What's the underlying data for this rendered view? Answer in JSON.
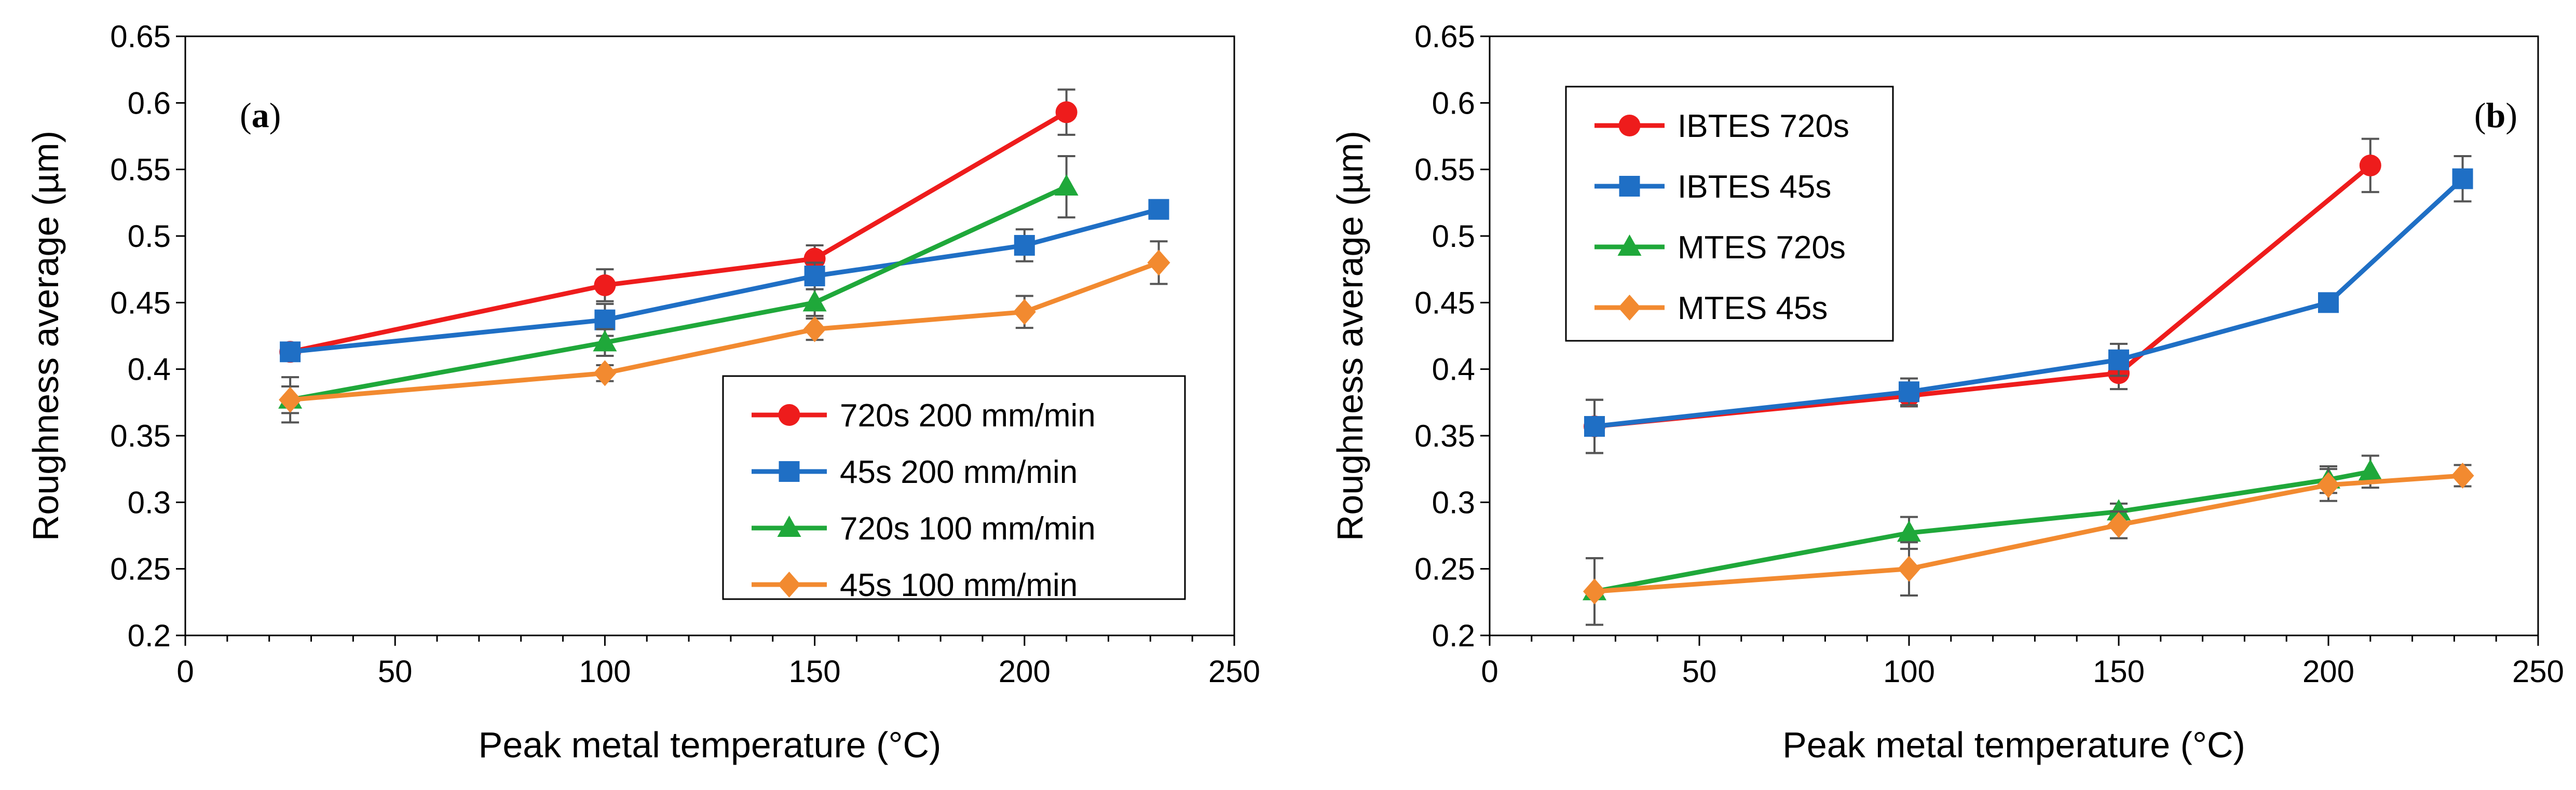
{
  "chart_data": [
    {
      "type": "line",
      "panel_label": "(a)",
      "panel_letter": "a",
      "xlabel": "Peak metal temperature (°C)",
      "ylabel": "Roughness average (µm)",
      "xlim": [
        0,
        250
      ],
      "ylim": [
        0.2,
        0.65
      ],
      "xticks": [
        "0",
        "50",
        "100",
        "150",
        "200",
        "250"
      ],
      "yticks": [
        "0.2",
        "0.25",
        "0.3",
        "0.35",
        "0.4",
        "0.45",
        "0.5",
        "0.55",
        "0.6",
        "0.65"
      ],
      "grid": false,
      "legend_position": "bottom-right",
      "series": [
        {
          "name": "720s 200 mm/min",
          "color": "#ee1c1c",
          "marker": "circle",
          "x": [
            25,
            100,
            150,
            210
          ],
          "y": [
            0.413,
            0.463,
            0.483,
            0.593
          ],
          "err": [
            0.005,
            0.012,
            0.01,
            0.017
          ]
        },
        {
          "name": "45s 200 mm/min",
          "color": "#1f6fc5",
          "marker": "square",
          "x": [
            25,
            100,
            150,
            200,
            232
          ],
          "y": [
            0.413,
            0.437,
            0.47,
            0.493,
            0.52
          ],
          "err": [
            0.006,
            0.012,
            0.01,
            0.012,
            0.006
          ]
        },
        {
          "name": "720s 100 mm/min",
          "color": "#1fa83a",
          "marker": "triangle",
          "x": [
            25,
            100,
            150,
            210
          ],
          "y": [
            0.377,
            0.42,
            0.45,
            0.537
          ],
          "err": [
            0.01,
            0.01,
            0.01,
            0.023
          ]
        },
        {
          "name": "45s 100 mm/min",
          "color": "#f28a30",
          "marker": "diamond",
          "x": [
            25,
            100,
            150,
            200,
            232
          ],
          "y": [
            0.377,
            0.397,
            0.43,
            0.443,
            0.48
          ],
          "err": [
            0.017,
            0.006,
            0.008,
            0.012,
            0.016
          ]
        }
      ]
    },
    {
      "type": "line",
      "panel_label": "(b)",
      "panel_letter": "b",
      "xlabel": "Peak metal temperature (°C)",
      "ylabel": "Roughness average (µm)",
      "xlim": [
        0,
        250
      ],
      "ylim": [
        0.2,
        0.65
      ],
      "xticks": [
        "0",
        "50",
        "100",
        "150",
        "200",
        "250"
      ],
      "yticks": [
        "0.2",
        "0.25",
        "0.3",
        "0.35",
        "0.4",
        "0.45",
        "0.5",
        "0.55",
        "0.6",
        "0.65"
      ],
      "grid": false,
      "legend_position": "top-left",
      "series": [
        {
          "name": "IBTES 720s",
          "color": "#ee1c1c",
          "marker": "circle",
          "x": [
            25,
            100,
            150,
            210
          ],
          "y": [
            0.357,
            0.38,
            0.397,
            0.553
          ],
          "err": [
            0.02,
            0.008,
            0.012,
            0.02
          ]
        },
        {
          "name": "IBTES 45s",
          "color": "#1f6fc5",
          "marker": "square",
          "x": [
            25,
            100,
            150,
            200,
            232
          ],
          "y": [
            0.357,
            0.383,
            0.407,
            0.45,
            0.543
          ],
          "err": [
            0.02,
            0.01,
            0.012,
            0.006,
            0.017
          ]
        },
        {
          "name": "MTES 720s",
          "color": "#1fa83a",
          "marker": "triangle",
          "x": [
            25,
            100,
            150,
            200,
            210
          ],
          "y": [
            0.233,
            0.277,
            0.293,
            0.317,
            0.323
          ],
          "err": [
            0.025,
            0.012,
            0.006,
            0.01,
            0.012
          ]
        },
        {
          "name": "MTES 45s",
          "color": "#f28a30",
          "marker": "diamond",
          "x": [
            25,
            100,
            150,
            200,
            232
          ],
          "y": [
            0.233,
            0.25,
            0.283,
            0.313,
            0.32
          ],
          "err": [
            0.025,
            0.02,
            0.01,
            0.012,
            0.008
          ]
        }
      ]
    }
  ]
}
